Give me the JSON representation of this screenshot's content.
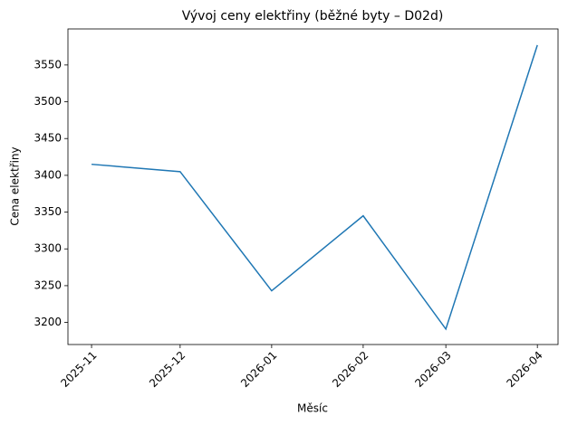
{
  "chart_data": {
    "type": "line",
    "title": "Vývoj ceny elektřiny (běžné byty – D02d)",
    "xlabel": "Měsíc",
    "ylabel": "Cena elektřiny",
    "x": [
      "2025-11",
      "2025-12",
      "2026-01",
      "2026-02",
      "2026-03",
      "2026-04"
    ],
    "series": [
      {
        "name": "Cena elektřiny",
        "color": "#1f77b4",
        "values": [
          3415,
          3405,
          3243,
          3345,
          3191,
          3577
        ]
      }
    ],
    "xlim": [
      "2025-10-24",
      "2026-04-08"
    ],
    "xticks": [
      "2025-11",
      "2025-12",
      "2026-01",
      "2026-02",
      "2026-03",
      "2026-04"
    ],
    "ylim": [
      3170,
      3599
    ],
    "yticks": [
      3200,
      3250,
      3300,
      3350,
      3400,
      3450,
      3500,
      3550
    ],
    "grid": false
  }
}
